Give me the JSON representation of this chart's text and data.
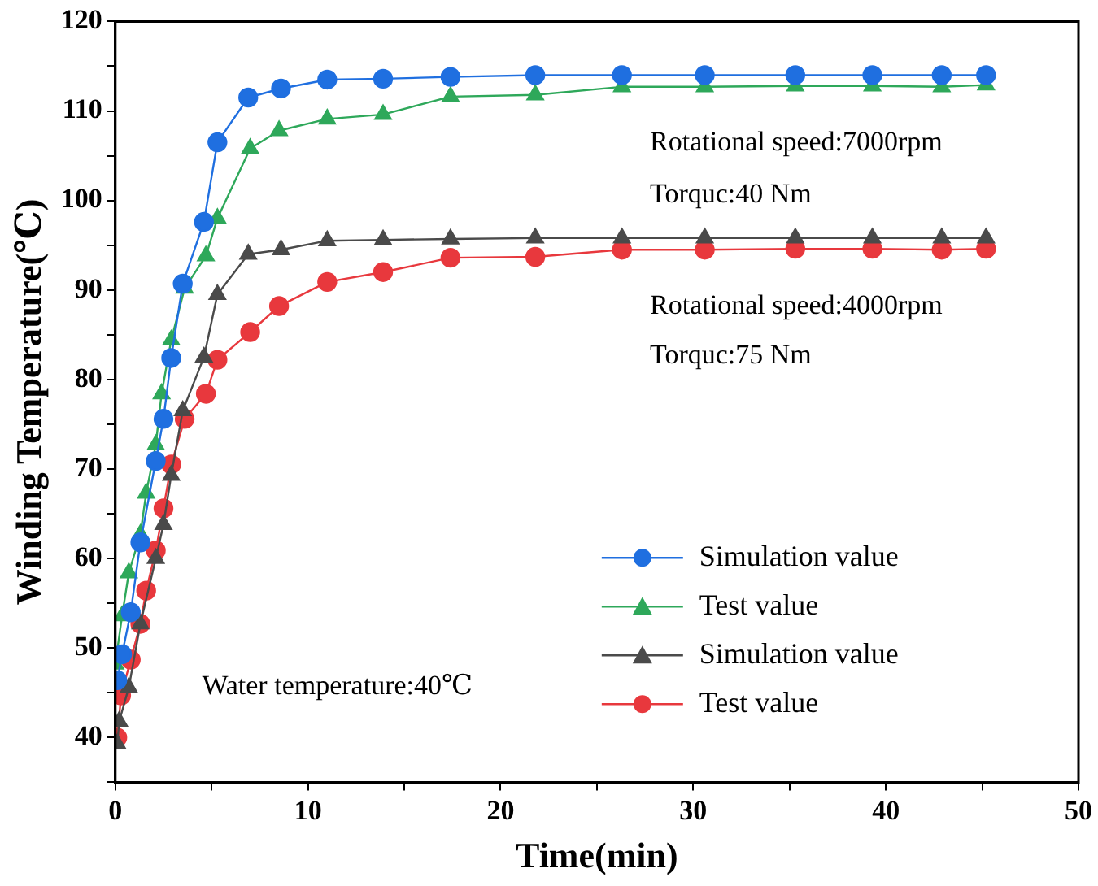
{
  "chart_data": {
    "type": "line",
    "xlabel": "Time(min)",
    "ylabel": "Winding Temperature(℃)",
    "xlim": [
      0,
      50
    ],
    "xticks": [
      0,
      {
        "value": 5,
        "label": null
      },
      10,
      {
        "value": 15,
        "label": null
      },
      20,
      {
        "value": 25,
        "label": null
      },
      30,
      {
        "value": 35,
        "label": null
      },
      40,
      {
        "value": 45,
        "label": null
      },
      50
    ],
    "ylim": [
      35,
      120
    ],
    "yticks": [
      {
        "value": 35,
        "label": null
      },
      40,
      {
        "value": 45,
        "label": null
      },
      50,
      {
        "value": 55,
        "label": null
      },
      60,
      {
        "value": 65,
        "label": null
      },
      70,
      {
        "value": 75,
        "label": null
      },
      80,
      {
        "value": 85,
        "label": null
      },
      90,
      {
        "value": 95,
        "label": null
      },
      100,
      {
        "value": 105,
        "label": null
      },
      110,
      {
        "value": 115,
        "label": null
      },
      120
    ],
    "grid": false,
    "legend": "bottom right",
    "line_style": "solid",
    "annotations": [
      "Rotational speed:7000rpm",
      "Torquc:40 Nm",
      "Rotational speed:4000rpm",
      "Torquc:75 Nm",
      "Water temperature:40℃"
    ],
    "series": [
      {
        "name": "Simulation value",
        "color": "#1f6fe0",
        "marker": "circle",
        "x": [
          0.1,
          0.35,
          0.8,
          1.3,
          2.1,
          2.5,
          2.9,
          3.5,
          4.6,
          5.3,
          6.9,
          8.6,
          11,
          13.9,
          17.4,
          21.8,
          26.3,
          30.6,
          35.3,
          39.3,
          42.9,
          45.2
        ],
        "values": [
          46.4,
          49.3,
          54,
          61.8,
          70.9,
          75.6,
          82.4,
          90.7,
          97.6,
          106.5,
          111.5,
          112.5,
          113.5,
          113.6,
          113.8,
          114,
          114,
          114,
          114,
          114,
          114,
          114
        ]
      },
      {
        "name": "Test value",
        "color": "#2ea85a",
        "marker": "triangle",
        "x": [
          0,
          0.35,
          0.7,
          1.3,
          1.6,
          2.1,
          2.4,
          2.9,
          3.6,
          4.7,
          5.3,
          7,
          8.5,
          11,
          13.9,
          17.4,
          21.8,
          26.3,
          30.6,
          35.3,
          39.3,
          42.9,
          45.2
        ],
        "values": [
          48.2,
          53.6,
          58.4,
          62.7,
          67.3,
          72.7,
          78.4,
          84.4,
          90.2,
          93.8,
          98,
          105.8,
          107.8,
          109.1,
          109.6,
          111.6,
          111.8,
          112.7,
          112.7,
          112.8,
          112.8,
          112.7,
          112.9
        ]
      },
      {
        "name": "Simulation value",
        "color": "#4a4a4a",
        "marker": "triangle",
        "x": [
          0.1,
          0.2,
          0.7,
          1.3,
          2.1,
          2.5,
          2.9,
          3.5,
          4.6,
          5.3,
          6.9,
          8.6,
          11,
          13.9,
          17.4,
          21.8,
          26.3,
          30.6,
          35.3,
          39.3,
          42.9,
          45.2
        ],
        "values": [
          39.3,
          41.8,
          45.6,
          52.7,
          60,
          63.8,
          69.3,
          76.5,
          82.5,
          89.5,
          94,
          94.5,
          95.5,
          95.6,
          95.7,
          95.8,
          95.8,
          95.8,
          95.8,
          95.8,
          95.8,
          95.8
        ]
      },
      {
        "name": "Test value",
        "color": "#e8383d",
        "marker": "circle",
        "x": [
          0.1,
          0.3,
          0.8,
          1.3,
          1.6,
          2.1,
          2.5,
          2.9,
          3.6,
          4.7,
          5.3,
          7,
          8.5,
          11,
          13.9,
          17.4,
          21.8,
          26.3,
          30.6,
          35.3,
          39.3,
          42.9,
          45.2
        ],
        "values": [
          40,
          44.7,
          48.7,
          52.7,
          56.4,
          60.9,
          65.6,
          70.5,
          75.6,
          78.4,
          82.2,
          85.3,
          88.2,
          90.9,
          92,
          93.6,
          93.7,
          94.5,
          94.5,
          94.6,
          94.6,
          94.5,
          94.6
        ]
      }
    ]
  }
}
